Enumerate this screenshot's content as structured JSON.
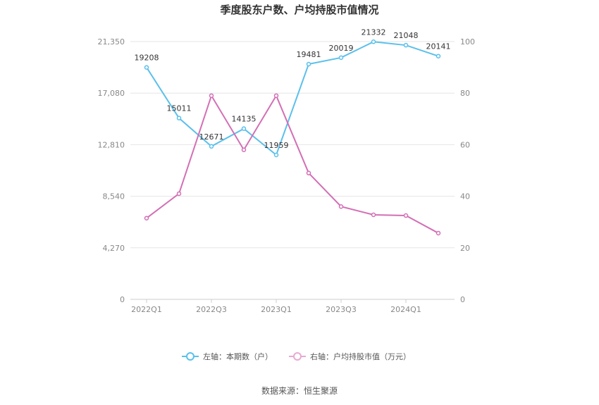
{
  "chart_data": {
    "type": "line",
    "title": "季度股东户数、户均持股市值情况",
    "x": [
      "2022Q1",
      "2022Q2",
      "2022Q3",
      "2022Q4",
      "2023Q1",
      "2023Q2",
      "2023Q3",
      "2023Q4",
      "2024Q1",
      "2024Q2"
    ],
    "x_tick_labels": [
      "2022Q1",
      "2022Q3",
      "2023Q1",
      "2023Q3",
      "2024Q1"
    ],
    "y_left": {
      "ticks": [
        "0",
        "4,270",
        "8,540",
        "12,810",
        "17,080",
        "21,350"
      ],
      "ylim": [
        0,
        21350
      ]
    },
    "y_right": {
      "ticks": [
        "0",
        "20",
        "40",
        "60",
        "80",
        "100"
      ],
      "ylim": [
        0,
        100
      ]
    },
    "series": [
      {
        "name": "左轴：本期数（户）",
        "axis": "left",
        "color": "#5bc0eb",
        "values": [
          19208,
          15011,
          12671,
          14135,
          11959,
          19481,
          20019,
          21332,
          21048,
          20141
        ],
        "labels": [
          "19208",
          "15011",
          "12671",
          "14135",
          "11959",
          "19481",
          "20019",
          "21332",
          "21048",
          "20141"
        ]
      },
      {
        "name": "右轴：户均持股市值（万元）",
        "axis": "right",
        "color": "#d36fb5",
        "values": [
          31.5,
          41,
          79,
          58,
          79,
          49,
          36,
          32.8,
          32.5,
          25.7
        ]
      }
    ],
    "grid": true,
    "legend_position": "bottom"
  },
  "source_text": "数据来源：恒生聚源"
}
